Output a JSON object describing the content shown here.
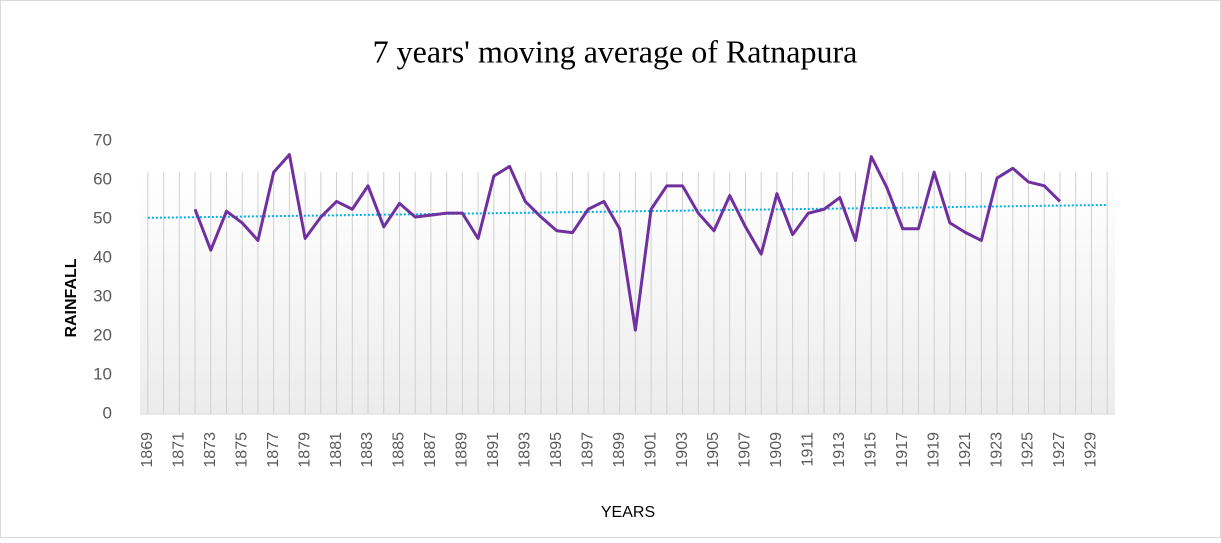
{
  "chart_data": {
    "type": "line",
    "title": "7 years' moving average of Ratnapura",
    "y_label": "RAINFALL",
    "x_label": "YEARS",
    "categories": [
      "1869",
      null,
      "1871",
      null,
      "1873",
      null,
      "1875",
      null,
      "1877",
      null,
      "1879",
      null,
      "1881",
      null,
      "1883",
      null,
      "1885",
      null,
      "1887",
      null,
      "1889",
      null,
      "1891",
      null,
      "1893",
      null,
      "1895",
      null,
      "1897",
      null,
      "1899",
      null,
      "1901",
      null,
      "1903",
      null,
      "1905",
      null,
      "1907",
      null,
      "1909",
      null,
      "1911",
      null,
      "1913",
      null,
      "1915",
      null,
      "1917",
      null,
      "1919",
      null,
      "1921",
      null,
      "1923",
      null,
      "1925",
      null,
      "1927",
      null,
      "1929",
      null
    ],
    "series": [
      {
        "color": "#7030a0",
        "values": [
          null,
          null,
          null,
          52.5,
          42,
          52,
          49,
          44.5,
          62,
          66.5,
          45,
          50.5,
          54.5,
          52.5,
          58.5,
          48,
          54,
          50.5,
          51,
          51.5,
          51.5,
          45,
          61,
          63.5,
          54.5,
          50.5,
          47,
          46.5,
          52.5,
          54.5,
          47.5,
          21.5,
          52.5,
          58.5,
          58.5,
          51.5,
          47,
          56,
          48,
          41,
          56.5,
          46,
          51.5,
          52.5,
          55.5,
          44.5,
          66,
          58,
          47.5,
          47.5,
          62,
          49,
          46.5,
          44.5,
          60.5,
          63,
          59.5,
          58.5,
          54.5,
          null,
          null,
          null
        ]
      }
    ],
    "trend": {
      "color": "#00b0f0",
      "start": 50.3,
      "end": 53.6
    },
    "ylim": [
      0,
      70
    ],
    "yticks": [
      0,
      10,
      20,
      30,
      40,
      50,
      60,
      70
    ]
  }
}
